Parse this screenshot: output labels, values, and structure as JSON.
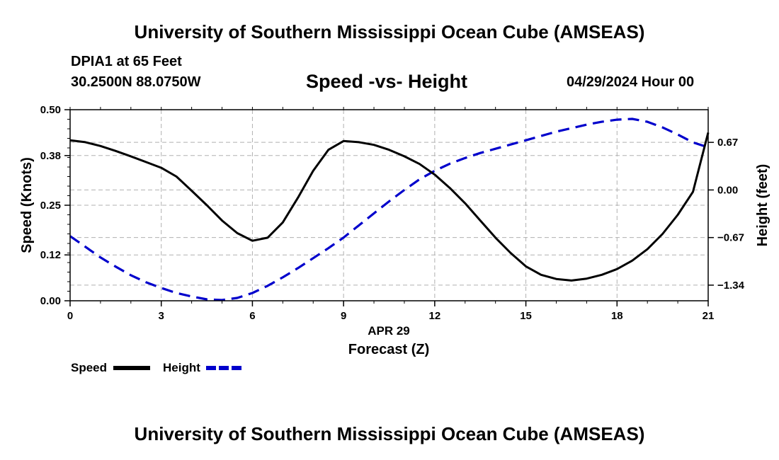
{
  "header": {
    "title": "University of Southern Mississippi Ocean Cube (AMSEAS)",
    "station": "DPIA1 at 65 Feet",
    "coords": "30.2500N  88.0750W",
    "datetime": "04/29/2024 Hour 00"
  },
  "footer": {
    "title": "University of Southern Mississippi Ocean Cube (AMSEAS)"
  },
  "chart_data": {
    "type": "line",
    "title": "Speed -vs- Height",
    "xlabel": "Forecast (Z)",
    "x_date_label": "APR 29",
    "ylabel": "Speed (Knots)",
    "y2label": "Height (feet)",
    "xlim": [
      0,
      21
    ],
    "ylim": [
      0,
      0.5
    ],
    "y2lim": [
      -1.56,
      1.13
    ],
    "xticks": [
      "0",
      "3",
      "6",
      "9",
      "12",
      "15",
      "18",
      "21"
    ],
    "yticks": [
      "0.00",
      "0.12",
      "0.25",
      "0.38",
      "0.50"
    ],
    "y2ticks": [
      "-1.34",
      "-0.67",
      "0.00",
      "0.67"
    ],
    "grid": true,
    "colors": {
      "speed": "#000000",
      "height": "#0000cc",
      "grid": "#b0b0b0"
    },
    "legend": {
      "position": "bottom-left",
      "speed_label": "Speed",
      "height_label": "Height"
    },
    "series": [
      {
        "name": "Speed",
        "axis": "left",
        "x": [
          0,
          0.5,
          1,
          1.5,
          2,
          2.5,
          3,
          3.5,
          4,
          4.5,
          5,
          5.5,
          6,
          6.5,
          7,
          7.5,
          8,
          8.5,
          9,
          9.5,
          10,
          10.5,
          11,
          11.5,
          12,
          12.5,
          13,
          13.5,
          14,
          14.5,
          15,
          15.5,
          16,
          16.5,
          17,
          17.5,
          18,
          18.5,
          19,
          19.5,
          20,
          20.5,
          21
        ],
        "values": [
          0.42,
          0.415,
          0.405,
          0.392,
          0.378,
          0.363,
          0.348,
          0.325,
          0.288,
          0.25,
          0.21,
          0.177,
          0.157,
          0.165,
          0.205,
          0.27,
          0.34,
          0.395,
          0.418,
          0.415,
          0.408,
          0.395,
          0.378,
          0.358,
          0.33,
          0.295,
          0.255,
          0.21,
          0.165,
          0.125,
          0.09,
          0.068,
          0.057,
          0.053,
          0.058,
          0.068,
          0.083,
          0.105,
          0.135,
          0.175,
          0.225,
          0.285,
          0.44
        ]
      },
      {
        "name": "Height",
        "axis": "right",
        "x": [
          0,
          0.5,
          1,
          1.5,
          2,
          2.5,
          3,
          3.5,
          4,
          4.5,
          5,
          5.5,
          6,
          6.5,
          7,
          7.5,
          8,
          8.5,
          9,
          9.5,
          10,
          10.5,
          11,
          11.5,
          12,
          12.5,
          13,
          13.5,
          14,
          14.5,
          15,
          15.5,
          16,
          16.5,
          17,
          17.5,
          18,
          18.5,
          19,
          19.5,
          20,
          20.5,
          21
        ],
        "values": [
          -0.65,
          -0.8,
          -0.95,
          -1.08,
          -1.2,
          -1.3,
          -1.38,
          -1.45,
          -1.5,
          -1.54,
          -1.55,
          -1.52,
          -1.45,
          -1.35,
          -1.23,
          -1.1,
          -0.96,
          -0.82,
          -0.67,
          -0.5,
          -0.33,
          -0.16,
          0.0,
          0.15,
          0.27,
          0.37,
          0.45,
          0.52,
          0.58,
          0.64,
          0.7,
          0.76,
          0.82,
          0.87,
          0.92,
          0.96,
          0.99,
          1.0,
          0.96,
          0.88,
          0.78,
          0.67,
          0.6
        ]
      }
    ]
  }
}
